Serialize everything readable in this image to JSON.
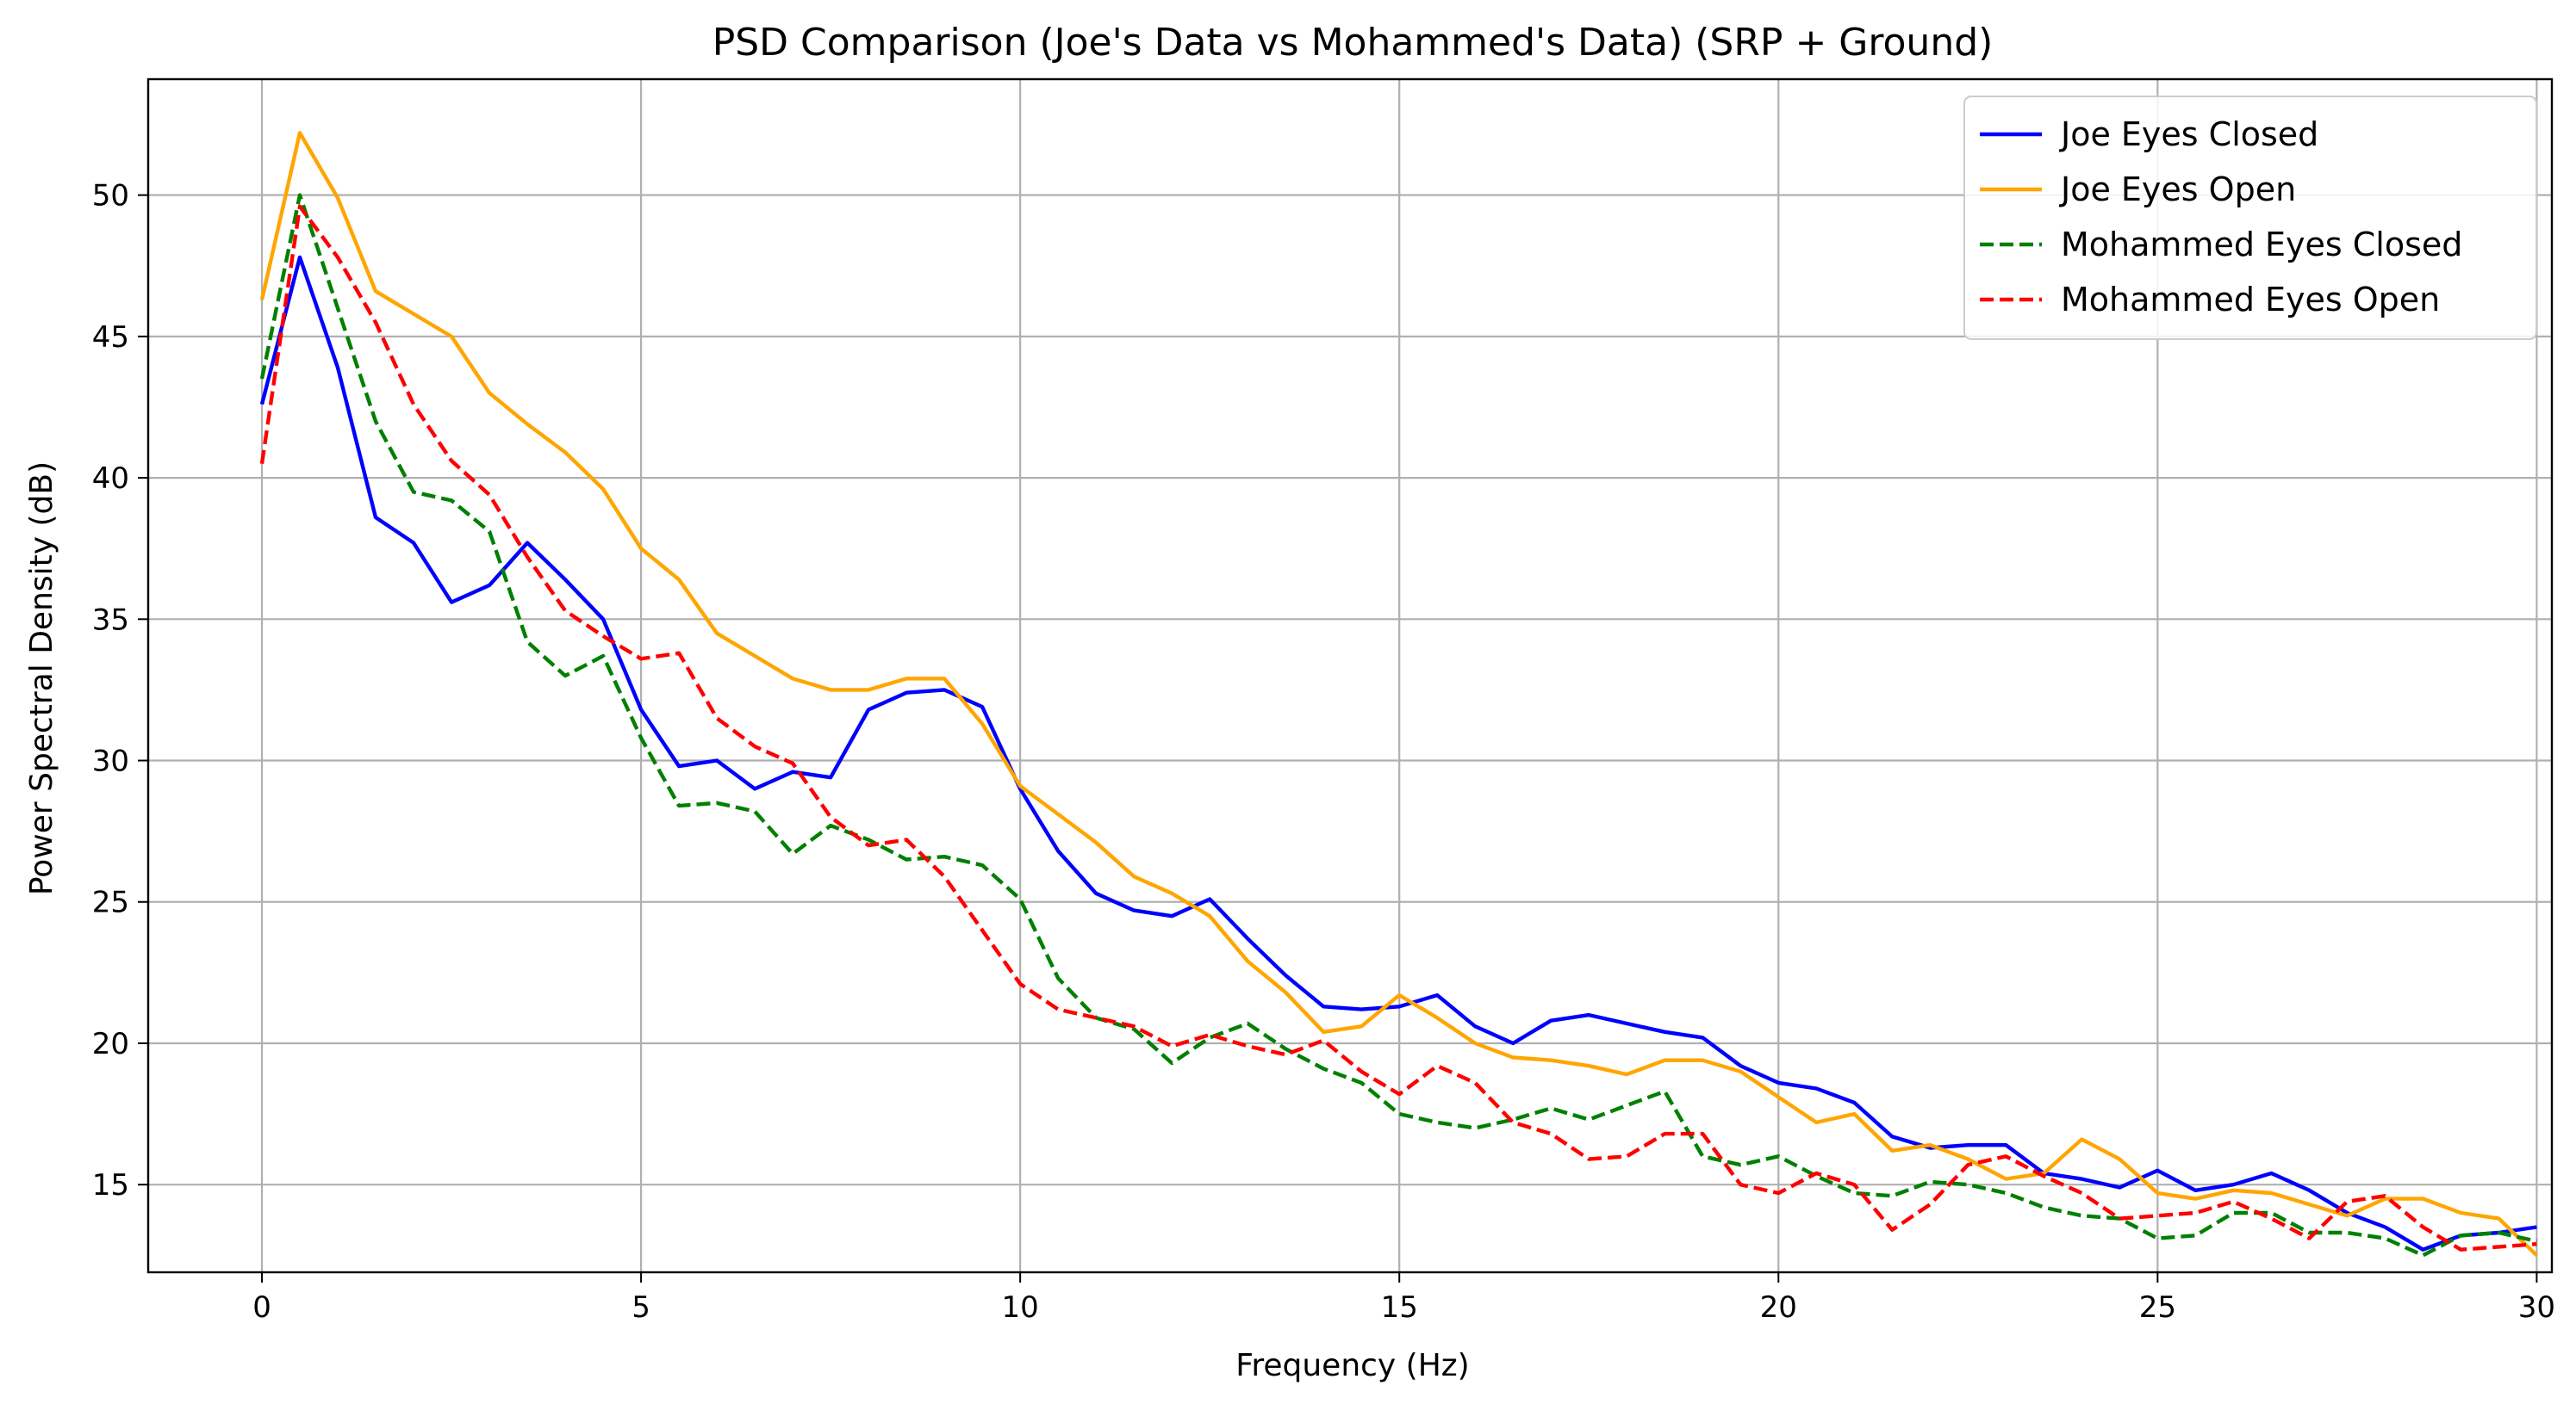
{
  "chart_data": {
    "type": "line",
    "title": "PSD Comparison (Joe's Data vs Mohammed's Data) (SRP + Ground)",
    "xlabel": "Frequency (Hz)",
    "ylabel": "Power Spectral Density (dB)",
    "xlim": [
      -1.5,
      30.2
    ],
    "ylim": [
      11.9,
      54.1
    ],
    "xticks": [
      0,
      5,
      10,
      15,
      20,
      25,
      30
    ],
    "yticks": [
      15,
      20,
      25,
      30,
      35,
      40,
      45,
      50
    ],
    "grid": true,
    "legend_position": "top-right",
    "x": [
      0,
      0.5,
      1,
      1.5,
      2,
      2.5,
      3,
      3.5,
      4,
      4.5,
      5,
      5.5,
      6,
      6.5,
      7,
      7.5,
      8,
      8.5,
      9,
      9.5,
      10,
      10.5,
      11,
      11.5,
      12,
      12.5,
      13,
      13.5,
      14,
      14.5,
      15,
      15.5,
      16,
      16.5,
      17,
      17.5,
      18,
      18.5,
      19,
      19.5,
      20,
      20.5,
      21,
      21.5,
      22,
      22.5,
      23,
      23.5,
      24,
      24.5,
      25,
      25.5,
      26,
      26.5,
      27,
      27.5,
      28,
      28.5,
      29,
      29.5,
      30
    ],
    "series": [
      {
        "name": "Joe Eyes Closed",
        "color": "#0000ff",
        "dash": "solid",
        "values": [
          42.6,
          47.8,
          43.9,
          38.6,
          37.7,
          35.6,
          36.2,
          37.7,
          36.4,
          35.0,
          31.8,
          29.8,
          30.0,
          29.0,
          29.6,
          29.4,
          31.8,
          32.4,
          32.5,
          31.9,
          29.0,
          26.8,
          25.3,
          24.7,
          24.5,
          25.1,
          23.7,
          22.4,
          21.3,
          21.2,
          21.3,
          21.7,
          20.6,
          20.0,
          20.8,
          21.0,
          20.7,
          20.4,
          20.2,
          19.2,
          18.6,
          18.4,
          17.9,
          16.7,
          16.3,
          16.4,
          16.4,
          15.4,
          15.2,
          14.9,
          15.5,
          14.8,
          15.0,
          15.4,
          14.8,
          14.0,
          13.5,
          12.7,
          13.2,
          13.3,
          13.5
        ]
      },
      {
        "name": "Joe Eyes Open",
        "color": "#ffa500",
        "dash": "solid",
        "values": [
          46.3,
          52.2,
          49.9,
          46.6,
          45.8,
          45.0,
          43.0,
          41.9,
          40.9,
          39.6,
          37.5,
          36.4,
          34.5,
          33.7,
          32.9,
          32.5,
          32.5,
          32.9,
          32.9,
          31.3,
          29.1,
          28.1,
          27.1,
          25.9,
          25.3,
          24.5,
          22.9,
          21.8,
          20.4,
          20.6,
          21.7,
          20.9,
          20.0,
          19.5,
          19.4,
          19.2,
          18.9,
          19.4,
          19.4,
          19.0,
          18.1,
          17.2,
          17.5,
          16.2,
          16.4,
          15.9,
          15.2,
          15.4,
          16.6,
          15.9,
          14.7,
          14.5,
          14.8,
          14.7,
          14.3,
          13.9,
          14.5,
          14.5,
          14.0,
          13.8,
          12.5
        ]
      },
      {
        "name": "Mohammed Eyes Closed",
        "color": "#008000",
        "dash": "dashed",
        "values": [
          43.5,
          50.0,
          46.0,
          42.0,
          39.5,
          39.2,
          38.1,
          34.2,
          33.0,
          33.7,
          30.8,
          28.4,
          28.5,
          28.2,
          26.7,
          27.7,
          27.2,
          26.5,
          26.6,
          26.3,
          25.1,
          22.3,
          20.9,
          20.5,
          19.3,
          20.2,
          20.7,
          19.8,
          19.1,
          18.6,
          17.5,
          17.2,
          17.0,
          17.3,
          17.7,
          17.3,
          17.8,
          18.3,
          16.0,
          15.7,
          16.0,
          15.3,
          14.7,
          14.6,
          15.1,
          15.0,
          14.7,
          14.2,
          13.9,
          13.8,
          13.1,
          13.2,
          14.0,
          14.0,
          13.3,
          13.3,
          13.1,
          12.5,
          13.2,
          13.3,
          13.0
        ]
      },
      {
        "name": "Mohammed Eyes Open",
        "color": "#ff0000",
        "dash": "dashed",
        "values": [
          40.5,
          49.6,
          47.8,
          45.5,
          42.6,
          40.6,
          39.4,
          37.2,
          35.3,
          34.4,
          33.6,
          33.8,
          31.5,
          30.5,
          29.9,
          28.0,
          27.0,
          27.2,
          25.9,
          24.0,
          22.1,
          21.2,
          20.9,
          20.6,
          19.9,
          20.3,
          19.9,
          19.6,
          20.1,
          19.0,
          18.2,
          19.2,
          18.6,
          17.2,
          16.8,
          15.9,
          16.0,
          16.8,
          16.8,
          15.0,
          14.7,
          15.4,
          15.0,
          13.4,
          14.3,
          15.7,
          16.0,
          15.3,
          14.7,
          13.8,
          13.9,
          14.0,
          14.4,
          13.8,
          13.1,
          14.4,
          14.6,
          13.5,
          12.7,
          12.8,
          12.9
        ]
      }
    ]
  }
}
